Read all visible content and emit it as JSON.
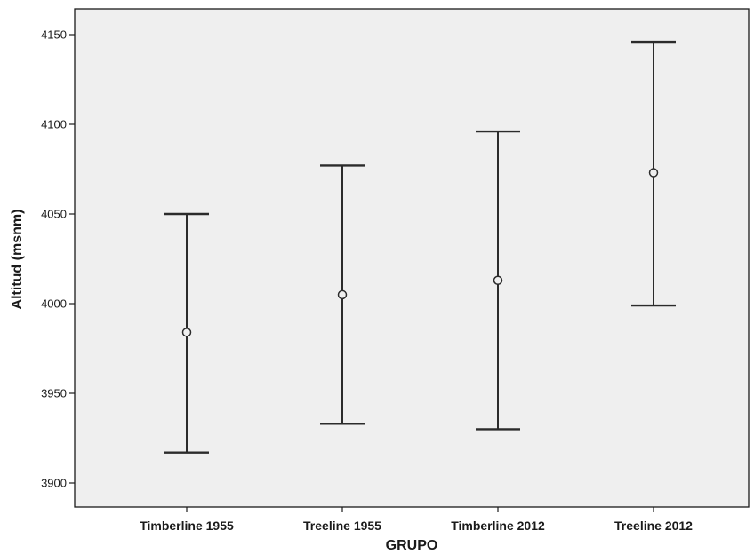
{
  "chart_data": {
    "type": "errorbar",
    "xlabel": "GRUPO",
    "ylabel": "Altitud (msnm)",
    "ylim": [
      3890,
      4165
    ],
    "yticks": [
      3900,
      3950,
      4000,
      4050,
      4100,
      4150
    ],
    "grid": false,
    "categories": [
      "Timberline 1955",
      "Treeline 1955",
      "Timberline 2012",
      "Treeline 2012"
    ],
    "mean": [
      3984,
      4005,
      4013,
      4073
    ],
    "lower": [
      3917,
      3933,
      3930,
      3999
    ],
    "upper": [
      4050,
      4077,
      4096,
      4146
    ],
    "colors": {
      "plot_background": "#efefef",
      "marks": "#2b2b2b"
    }
  }
}
